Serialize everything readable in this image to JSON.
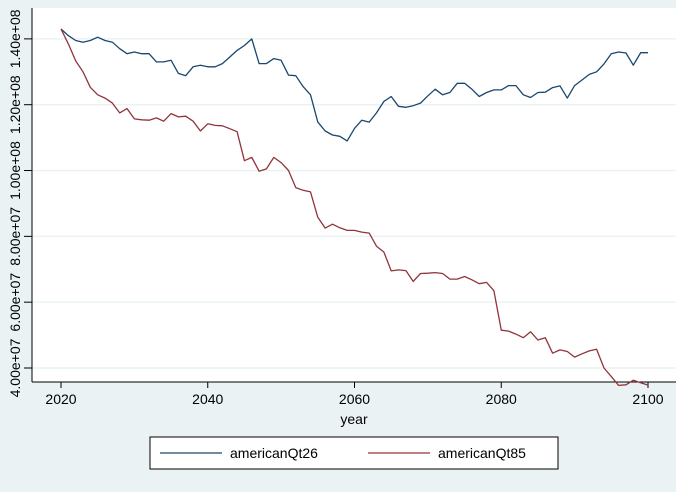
{
  "chart_data": {
    "type": "line",
    "xlabel": "year",
    "ylabel": "",
    "xlim": [
      2020,
      2100
    ],
    "ylim": [
      40000000,
      148000000
    ],
    "x_ticks": [
      2020,
      2040,
      2060,
      2080,
      2100
    ],
    "x_tick_labels": [
      "2020",
      "2040",
      "2060",
      "2080",
      "2100"
    ],
    "y_ticks": [
      40000000,
      60000000,
      80000000,
      100000000,
      120000000,
      140000000
    ],
    "y_tick_labels": [
      "4.00e+07",
      "6.00e+07",
      "8.00e+07",
      "1.00e+08",
      "1.20e+08",
      "1.40e+08"
    ],
    "grid": true,
    "legend_position": "bottom",
    "series": [
      {
        "name": "americanQt26",
        "color": "#1a476f",
        "x": [
          2020,
          2021,
          2022,
          2023,
          2024,
          2025,
          2026,
          2027,
          2028,
          2029,
          2030,
          2031,
          2032,
          2033,
          2034,
          2035,
          2036,
          2037,
          2038,
          2039,
          2040,
          2041,
          2042,
          2043,
          2044,
          2045,
          2046,
          2047,
          2048,
          2049,
          2050,
          2051,
          2052,
          2053,
          2054,
          2055,
          2056,
          2057,
          2058,
          2059,
          2060,
          2061,
          2062,
          2063,
          2064,
          2065,
          2066,
          2067,
          2068,
          2069,
          2070,
          2071,
          2072,
          2073,
          2074,
          2075,
          2076,
          2077,
          2078,
          2079,
          2080,
          2081,
          2082,
          2083,
          2084,
          2085,
          2086,
          2087,
          2088,
          2089,
          2090,
          2091,
          2092,
          2093,
          2094,
          2095,
          2096,
          2097,
          2098,
          2099,
          2100
        ],
        "y": [
          143000000,
          141000000,
          139500000,
          139000000,
          139500000,
          140500000,
          139500000,
          139000000,
          137000000,
          135500000,
          136000000,
          135500000,
          135500000,
          133000000,
          133000000,
          133500000,
          129500000,
          128800000,
          131500000,
          132000000,
          131500000,
          131500000,
          132500000,
          134500000,
          136500000,
          138000000,
          140000000,
          132500000,
          132500000,
          134000000,
          133500000,
          129000000,
          128800000,
          125500000,
          123000000,
          114700000,
          112000000,
          110800000,
          110400000,
          109000000,
          112800000,
          115300000,
          114700000,
          117500000,
          121000000,
          122500000,
          119500000,
          119200000,
          119700000,
          120500000,
          122700000,
          124700000,
          123000000,
          123700000,
          126500000,
          126500000,
          124700000,
          122500000,
          123700000,
          124500000,
          124500000,
          125800000,
          125800000,
          123000000,
          122200000,
          123700000,
          123800000,
          125200000,
          125700000,
          122000000,
          125800000,
          127500000,
          129200000,
          130000000,
          132400000,
          135500000,
          136000000,
          135700000,
          132000000,
          135800000,
          135800000
        ]
      },
      {
        "name": "americanQt85",
        "color": "#90353b",
        "x": [
          2020,
          2021,
          2022,
          2023,
          2024,
          2025,
          2026,
          2027,
          2028,
          2029,
          2030,
          2031,
          2032,
          2033,
          2034,
          2035,
          2036,
          2037,
          2038,
          2039,
          2040,
          2041,
          2042,
          2043,
          2044,
          2045,
          2046,
          2047,
          2048,
          2049,
          2050,
          2051,
          2052,
          2053,
          2054,
          2055,
          2056,
          2057,
          2058,
          2059,
          2060,
          2061,
          2062,
          2063,
          2064,
          2065,
          2066,
          2067,
          2068,
          2069,
          2070,
          2071,
          2072,
          2073,
          2074,
          2075,
          2076,
          2077,
          2078,
          2079,
          2080,
          2081,
          2082,
          2083,
          2084,
          2085,
          2086,
          2087,
          2088,
          2089,
          2090,
          2091,
          2092,
          2093,
          2094,
          2095,
          2096,
          2097,
          2098,
          2099,
          2100
        ],
        "y": [
          143000000,
          138500000,
          133300000,
          130000000,
          125300000,
          123000000,
          122000000,
          120500000,
          117500000,
          118800000,
          115700000,
          115400000,
          115300000,
          116000000,
          115000000,
          117300000,
          116300000,
          116500000,
          115000000,
          112000000,
          114200000,
          113700000,
          113600000,
          112700000,
          111800000,
          103000000,
          104000000,
          99800000,
          100500000,
          104000000,
          102400000,
          100000000,
          94800000,
          94000000,
          93500000,
          85800000,
          82500000,
          83700000,
          82600000,
          81800000,
          81800000,
          81300000,
          81000000,
          77000000,
          75200000,
          69500000,
          69800000,
          69600000,
          66300000,
          68700000,
          68800000,
          69000000,
          68700000,
          67000000,
          67000000,
          67800000,
          66800000,
          65600000,
          66000000,
          63500000,
          51500000,
          51200000,
          50300000,
          49200000,
          51000000,
          48500000,
          49200000,
          44500000,
          45500000,
          45000000,
          43300000,
          44300000,
          45200000,
          45700000,
          40000000,
          37400000,
          34700000,
          34900000,
          36300000,
          35500000,
          34800000
        ]
      }
    ]
  }
}
